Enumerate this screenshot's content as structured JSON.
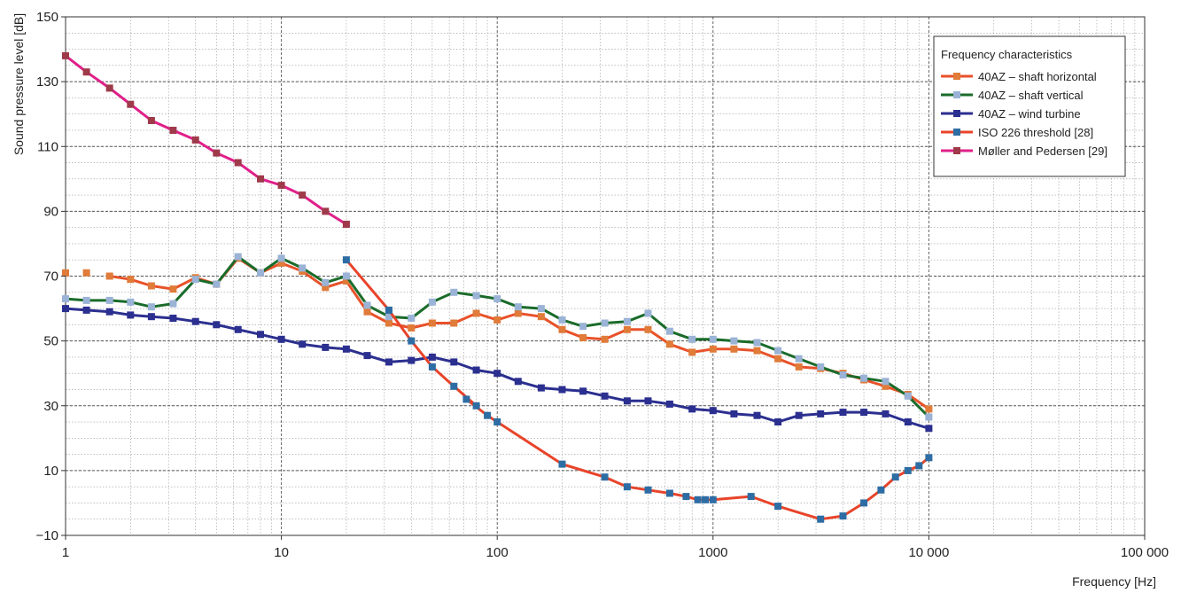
{
  "chart_data": {
    "type": "line",
    "title": "",
    "xlabel": "Frequency [Hz]",
    "ylabel": "Sound pressure level [dB]",
    "xscale": "log",
    "xlim": [
      1,
      100000
    ],
    "ylim": [
      -10,
      150
    ],
    "grid": true,
    "legend_position": "top-right",
    "legend_title": "Frequency characteristics",
    "x_ticks": [
      1,
      10,
      100,
      1000,
      10000,
      100000
    ],
    "x_tick_labels": [
      "1",
      "10",
      "100",
      "1000",
      "10 000",
      "100 000"
    ],
    "y_ticks": [
      -10,
      10,
      30,
      50,
      70,
      90,
      110,
      130,
      150
    ],
    "y_tick_labels": [
      "−10",
      "10",
      "30",
      "50",
      "70",
      "90",
      "110",
      "130",
      "150"
    ],
    "series": [
      {
        "name": "40AZ – shaft horizontal",
        "line_color": "#e8522a",
        "marker_color": "#e07b39",
        "disconnected_points": 2,
        "points": [
          [
            1,
            71
          ],
          [
            1.25,
            71
          ],
          [
            1.6,
            70
          ],
          [
            2,
            69
          ],
          [
            2.5,
            67
          ],
          [
            3.15,
            66
          ],
          [
            4,
            69.5
          ],
          [
            5,
            67.5
          ],
          [
            6.3,
            75.5
          ],
          [
            8,
            71
          ],
          [
            10,
            74
          ],
          [
            12.5,
            71.5
          ],
          [
            16,
            66.5
          ],
          [
            20,
            68.5
          ],
          [
            25,
            59
          ],
          [
            31.5,
            55.5
          ],
          [
            40,
            54
          ],
          [
            50,
            55.5
          ],
          [
            63,
            55.5
          ],
          [
            80,
            58.5
          ],
          [
            100,
            56.5
          ],
          [
            125,
            58.5
          ],
          [
            160,
            57.5
          ],
          [
            200,
            53.5
          ],
          [
            250,
            51
          ],
          [
            315,
            50.5
          ],
          [
            400,
            53.5
          ],
          [
            500,
            53.5
          ],
          [
            630,
            49
          ],
          [
            800,
            46.5
          ],
          [
            1000,
            47.5
          ],
          [
            1250,
            47.5
          ],
          [
            1600,
            47
          ],
          [
            2000,
            44.5
          ],
          [
            2500,
            42
          ],
          [
            3150,
            41.5
          ],
          [
            4000,
            40
          ],
          [
            5000,
            38
          ],
          [
            6300,
            36
          ],
          [
            8000,
            33.5
          ],
          [
            10000,
            29
          ]
        ]
      },
      {
        "name": "40AZ – shaft vertical",
        "line_color": "#1a6b2a",
        "marker_color": "#9ab3d6",
        "points": [
          [
            1,
            63
          ],
          [
            1.25,
            62.5
          ],
          [
            1.6,
            62.5
          ],
          [
            2,
            62
          ],
          [
            2.5,
            60.5
          ],
          [
            3.15,
            61.5
          ],
          [
            4,
            69
          ],
          [
            5,
            67.5
          ],
          [
            6.3,
            76
          ],
          [
            8,
            71
          ],
          [
            10,
            75.5
          ],
          [
            12.5,
            72.5
          ],
          [
            16,
            68
          ],
          [
            20,
            70
          ],
          [
            25,
            61
          ],
          [
            31.5,
            57.5
          ],
          [
            40,
            57
          ],
          [
            50,
            62
          ],
          [
            63,
            65
          ],
          [
            80,
            64
          ],
          [
            100,
            63
          ],
          [
            125,
            60.5
          ],
          [
            160,
            60
          ],
          [
            200,
            56.5
          ],
          [
            250,
            54.5
          ],
          [
            315,
            55.5
          ],
          [
            400,
            56
          ],
          [
            500,
            58.5
          ],
          [
            630,
            53
          ],
          [
            800,
            50.5
          ],
          [
            1000,
            50.5
          ],
          [
            1250,
            50
          ],
          [
            1600,
            49.5
          ],
          [
            2000,
            47
          ],
          [
            2500,
            44.5
          ],
          [
            3150,
            42
          ],
          [
            4000,
            39.5
          ],
          [
            5000,
            38.5
          ],
          [
            6300,
            37.5
          ],
          [
            8000,
            33
          ],
          [
            10000,
            26.5
          ]
        ]
      },
      {
        "name": "40AZ – wind turbine",
        "line_color": "#2b2f8f",
        "marker_color": "#2b2f8f",
        "points": [
          [
            1,
            60
          ],
          [
            1.25,
            59.5
          ],
          [
            1.6,
            59
          ],
          [
            2,
            58
          ],
          [
            2.5,
            57.5
          ],
          [
            3.15,
            57
          ],
          [
            4,
            56
          ],
          [
            5,
            55
          ],
          [
            6.3,
            53.5
          ],
          [
            8,
            52
          ],
          [
            10,
            50.5
          ],
          [
            12.5,
            49
          ],
          [
            16,
            48
          ],
          [
            20,
            47.5
          ],
          [
            25,
            45.5
          ],
          [
            31.5,
            43.5
          ],
          [
            40,
            44
          ],
          [
            50,
            45
          ],
          [
            63,
            43.5
          ],
          [
            80,
            41
          ],
          [
            100,
            40
          ],
          [
            125,
            37.5
          ],
          [
            160,
            35.5
          ],
          [
            200,
            35
          ],
          [
            250,
            34.5
          ],
          [
            315,
            33
          ],
          [
            400,
            31.5
          ],
          [
            500,
            31.5
          ],
          [
            630,
            30.5
          ],
          [
            800,
            29
          ],
          [
            1000,
            28.5
          ],
          [
            1250,
            27.5
          ],
          [
            1600,
            27
          ],
          [
            2000,
            25
          ],
          [
            2500,
            27
          ],
          [
            3150,
            27.5
          ],
          [
            4000,
            28
          ],
          [
            5000,
            28
          ],
          [
            6300,
            27.5
          ],
          [
            8000,
            25
          ],
          [
            10000,
            23
          ]
        ]
      },
      {
        "name": "ISO 226 threshold [28]",
        "line_color": "#e8442a",
        "marker_color": "#2e6da4",
        "points": [
          [
            20,
            75
          ],
          [
            31.5,
            59.5
          ],
          [
            40,
            50
          ],
          [
            50,
            42
          ],
          [
            63,
            36
          ],
          [
            80,
            30
          ],
          [
            72,
            32
          ],
          [
            90,
            27
          ],
          [
            100,
            25
          ],
          [
            200,
            12
          ],
          [
            315,
            8
          ],
          [
            400,
            5
          ],
          [
            500,
            4
          ],
          [
            630,
            3
          ],
          [
            750,
            2
          ],
          [
            850,
            1
          ],
          [
            920,
            1
          ],
          [
            1000,
            1
          ],
          [
            1500,
            2
          ],
          [
            2000,
            -1
          ],
          [
            3150,
            -5
          ],
          [
            4000,
            -4
          ],
          [
            5000,
            0
          ],
          [
            6000,
            4
          ],
          [
            7000,
            8
          ],
          [
            8000,
            10
          ],
          [
            9000,
            11.5
          ],
          [
            10000,
            14
          ]
        ]
      },
      {
        "name": "Møller and Pedersen [29]",
        "line_color": "#e0208a",
        "marker_color": "#9e3a4a",
        "points": [
          [
            1,
            138
          ],
          [
            1.25,
            133
          ],
          [
            1.6,
            128
          ],
          [
            2,
            123
          ],
          [
            2.5,
            118
          ],
          [
            3.15,
            115
          ],
          [
            4,
            112
          ],
          [
            5,
            108
          ],
          [
            6.3,
            105
          ],
          [
            8,
            100
          ],
          [
            10,
            98
          ],
          [
            12.5,
            95
          ],
          [
            16,
            90
          ],
          [
            20,
            86
          ]
        ]
      }
    ]
  }
}
